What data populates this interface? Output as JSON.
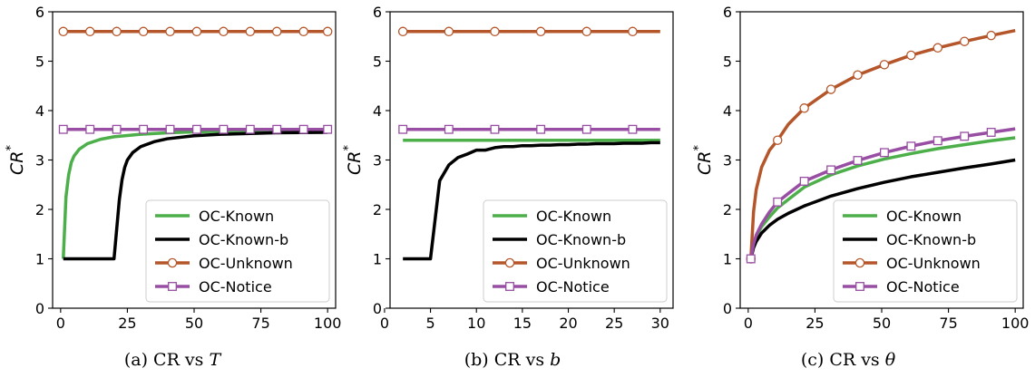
{
  "chart_data": [
    {
      "type": "line",
      "caption_prefix": "(a) CR vs ",
      "caption_var": "T",
      "ylabel_base": "CR",
      "ylabel_sup": "*",
      "xlim": [
        -3,
        103
      ],
      "ylim": [
        0,
        6
      ],
      "xticks": [
        0,
        25,
        50,
        75,
        100
      ],
      "yticks": [
        0,
        1,
        2,
        3,
        4,
        5,
        6
      ],
      "legend_position": "lower-right",
      "series": [
        {
          "name": "OC-Known",
          "color": "#4daf4a",
          "marker": "none",
          "x": [
            1,
            2,
            3,
            4,
            5,
            7,
            10,
            15,
            20,
            30,
            40,
            50,
            60,
            80,
            100
          ],
          "y": [
            1.0,
            2.25,
            2.7,
            2.95,
            3.08,
            3.22,
            3.33,
            3.42,
            3.47,
            3.52,
            3.55,
            3.57,
            3.58,
            3.6,
            3.6
          ]
        },
        {
          "name": "OC-Known-b",
          "color": "#000000",
          "marker": "none",
          "x": [
            1,
            20,
            21,
            22,
            23,
            24,
            25,
            27,
            30,
            35,
            40,
            50,
            60,
            80,
            100
          ],
          "y": [
            1.0,
            1.0,
            1.6,
            2.2,
            2.6,
            2.85,
            3.0,
            3.15,
            3.27,
            3.37,
            3.43,
            3.49,
            3.52,
            3.55,
            3.56
          ]
        },
        {
          "name": "OC-Unknown",
          "color": "#b5562a",
          "marker": "circle",
          "x": [
            1,
            11,
            21,
            31,
            41,
            51,
            61,
            71,
            81,
            91,
            100
          ],
          "y": [
            5.6,
            5.6,
            5.6,
            5.6,
            5.6,
            5.6,
            5.6,
            5.6,
            5.6,
            5.6,
            5.6
          ]
        },
        {
          "name": "OC-Notice",
          "color": "#984ea3",
          "marker": "square",
          "x": [
            1,
            11,
            21,
            31,
            41,
            51,
            61,
            71,
            81,
            91,
            100
          ],
          "y": [
            3.62,
            3.62,
            3.62,
            3.62,
            3.62,
            3.62,
            3.62,
            3.62,
            3.62,
            3.62,
            3.62
          ]
        }
      ]
    },
    {
      "type": "line",
      "caption_prefix": "(b) CR vs ",
      "caption_var": "b",
      "ylabel_base": "CR",
      "ylabel_sup": "*",
      "xlim": [
        0.6,
        31.4
      ],
      "ylim": [
        0,
        6
      ],
      "xticks": [
        0,
        5,
        10,
        15,
        20,
        25,
        30
      ],
      "yticks": [
        0,
        1,
        2,
        3,
        4,
        5,
        6
      ],
      "legend_position": "lower-right",
      "series": [
        {
          "name": "OC-Known",
          "color": "#4daf4a",
          "marker": "none",
          "x": [
            2,
            30
          ],
          "y": [
            3.4,
            3.4
          ]
        },
        {
          "name": "OC-Known-b",
          "color": "#000000",
          "marker": "none",
          "x": [
            2,
            5,
            6,
            7,
            8,
            9,
            10,
            11,
            12,
            13,
            14,
            15,
            16,
            17,
            18,
            19,
            20,
            21,
            22,
            23,
            24,
            25,
            26,
            27,
            28,
            29,
            30
          ],
          "y": [
            1.0,
            1.0,
            2.58,
            2.9,
            3.05,
            3.12,
            3.2,
            3.2,
            3.25,
            3.27,
            3.27,
            3.29,
            3.29,
            3.3,
            3.3,
            3.31,
            3.31,
            3.32,
            3.32,
            3.33,
            3.33,
            3.33,
            3.34,
            3.34,
            3.34,
            3.35,
            3.35
          ]
        },
        {
          "name": "OC-Unknown",
          "color": "#b5562a",
          "marker": "circle",
          "x": [
            2,
            7,
            12,
            17,
            22,
            27,
            30
          ],
          "y": [
            5.6,
            5.6,
            5.6,
            5.6,
            5.6,
            5.6,
            5.6
          ],
          "marker_x": [
            2,
            7,
            12,
            17,
            22,
            27
          ]
        },
        {
          "name": "OC-Notice",
          "color": "#984ea3",
          "marker": "square",
          "x": [
            2,
            7,
            12,
            17,
            22,
            27,
            30
          ],
          "y": [
            3.62,
            3.62,
            3.62,
            3.62,
            3.62,
            3.62,
            3.62
          ],
          "marker_x": [
            2,
            7,
            12,
            17,
            22,
            27
          ]
        }
      ]
    },
    {
      "type": "line",
      "caption_prefix": "(c) CR vs ",
      "caption_var": "θ",
      "ylabel_base": "CR",
      "ylabel_sup": "*",
      "xlim": [
        -3,
        103
      ],
      "ylim": [
        0,
        6
      ],
      "xticks": [
        0,
        25,
        50,
        75,
        100
      ],
      "yticks": [
        0,
        1,
        2,
        3,
        4,
        5,
        6
      ],
      "legend_position": "lower-right",
      "series": [
        {
          "name": "OC-Known",
          "color": "#4daf4a",
          "marker": "none",
          "x": [
            1,
            2,
            3,
            5,
            8,
            11,
            15,
            21,
            31,
            41,
            51,
            61,
            71,
            81,
            91,
            100
          ],
          "y": [
            1.0,
            1.28,
            1.45,
            1.65,
            1.85,
            2.03,
            2.2,
            2.45,
            2.7,
            2.88,
            3.02,
            3.13,
            3.23,
            3.31,
            3.39,
            3.45
          ]
        },
        {
          "name": "OC-Known-b",
          "color": "#000000",
          "marker": "none",
          "x": [
            1,
            2,
            3,
            5,
            8,
            11,
            15,
            21,
            31,
            41,
            51,
            61,
            71,
            81,
            91,
            100
          ],
          "y": [
            1.0,
            1.22,
            1.35,
            1.52,
            1.68,
            1.8,
            1.92,
            2.07,
            2.27,
            2.42,
            2.55,
            2.66,
            2.75,
            2.84,
            2.92,
            3.0
          ]
        },
        {
          "name": "OC-Unknown",
          "color": "#b5562a",
          "marker": "circle",
          "x": [
            1,
            2,
            3,
            5,
            8,
            11,
            15,
            21,
            31,
            41,
            51,
            61,
            71,
            81,
            91,
            100
          ],
          "y": [
            1.0,
            1.95,
            2.4,
            2.85,
            3.2,
            3.4,
            3.72,
            4.05,
            4.43,
            4.72,
            4.93,
            5.12,
            5.27,
            5.4,
            5.52,
            5.62
          ],
          "marker_x": [
            1,
            11,
            21,
            31,
            41,
            51,
            61,
            71,
            81,
            91
          ]
        },
        {
          "name": "OC-Notice",
          "color": "#984ea3",
          "marker": "square",
          "x": [
            1,
            2,
            3,
            5,
            8,
            11,
            15,
            21,
            31,
            41,
            51,
            61,
            71,
            81,
            91,
            100
          ],
          "y": [
            1.0,
            1.3,
            1.48,
            1.7,
            1.95,
            2.15,
            2.32,
            2.57,
            2.8,
            2.99,
            3.15,
            3.28,
            3.39,
            3.48,
            3.56,
            3.63
          ],
          "marker_x": [
            1,
            11,
            21,
            31,
            41,
            51,
            61,
            71,
            81,
            91
          ]
        }
      ]
    }
  ]
}
